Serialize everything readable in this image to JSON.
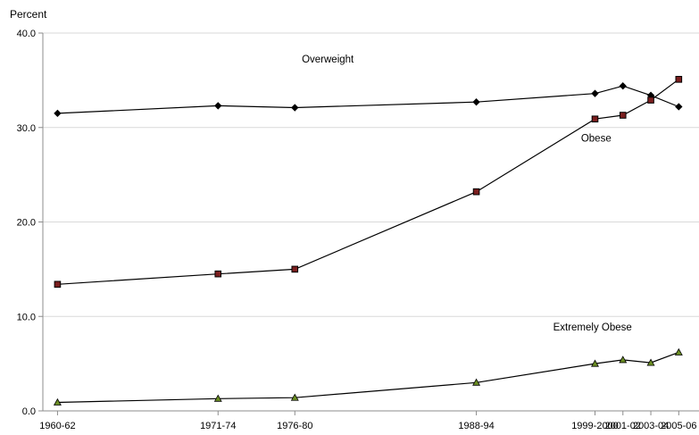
{
  "chart_data": {
    "type": "line",
    "ylabel": "Percent",
    "xlabel": "",
    "ylim": [
      0,
      40
    ],
    "y_ticks": [
      "0.0",
      "10.0",
      "20.0",
      "30.0",
      "40.0"
    ],
    "grid": "horizontal",
    "legend": "none",
    "x": [
      1961,
      1972.5,
      1978,
      1991,
      1999.5,
      2001.5,
      2003.5,
      2005.5
    ],
    "categories": [
      "1960-62",
      "1971-74",
      "1976-80",
      "1988-94",
      "1999-2000",
      "2001-02",
      "2003-04",
      "2005-06"
    ],
    "series": [
      {
        "name": "Overweight",
        "values": [
          31.5,
          32.3,
          32.1,
          32.7,
          33.6,
          34.4,
          33.4,
          32.2
        ],
        "color": "#000000",
        "marker": "diamond",
        "label_anchor_x": 1978.5,
        "label_anchor_y": 36.9
      },
      {
        "name": "Obese",
        "values": [
          13.4,
          14.5,
          15.0,
          23.2,
          30.9,
          31.3,
          32.9,
          35.1
        ],
        "color": "#000000",
        "marker": "square",
        "marker_fill": "#7a1e1e",
        "label_anchor_x": 1998.5,
        "label_anchor_y": 28.5
      },
      {
        "name": "Extremely Obese",
        "values": [
          0.9,
          1.3,
          1.4,
          3.0,
          5.0,
          5.4,
          5.1,
          6.2
        ],
        "color": "#000000",
        "marker": "triangle",
        "marker_fill": "#6b8e23",
        "label_anchor_x": 1996.5,
        "label_anchor_y": 8.5
      }
    ]
  }
}
